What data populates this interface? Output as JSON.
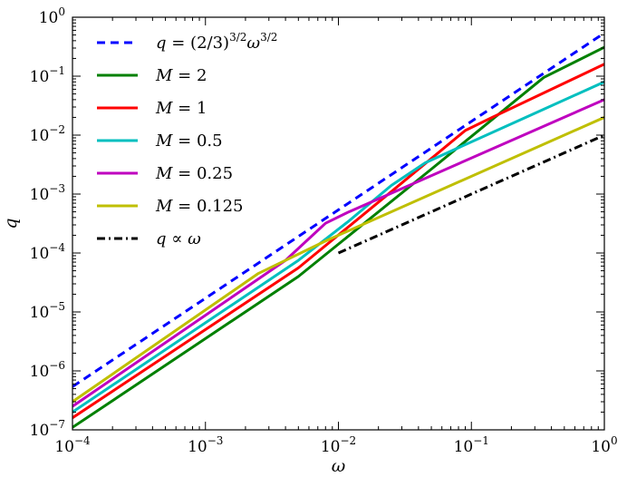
{
  "chart_data": {
    "type": "line",
    "xscale": "log",
    "yscale": "log",
    "xlim": [
      0.0001,
      1
    ],
    "ylim": [
      1e-07,
      1
    ],
    "xlabel": "ω",
    "ylabel": "q",
    "xticks": [
      {
        "value": 0.0001,
        "base": "10",
        "exp": "−4"
      },
      {
        "value": 0.001,
        "base": "10",
        "exp": "−3"
      },
      {
        "value": 0.01,
        "base": "10",
        "exp": "−2"
      },
      {
        "value": 0.1,
        "base": "10",
        "exp": "−1"
      },
      {
        "value": 1,
        "base": "10",
        "exp": "0"
      }
    ],
    "yticks": [
      {
        "value": 1e-07,
        "base": "10",
        "exp": "−7"
      },
      {
        "value": 1e-06,
        "base": "10",
        "exp": "−6"
      },
      {
        "value": 1e-05,
        "base": "10",
        "exp": "−5"
      },
      {
        "value": 0.0001,
        "base": "10",
        "exp": "−4"
      },
      {
        "value": 0.001,
        "base": "10",
        "exp": "−3"
      },
      {
        "value": 0.01,
        "base": "10",
        "exp": "−2"
      },
      {
        "value": 0.1,
        "base": "10",
        "exp": "−1"
      },
      {
        "value": 1,
        "base": "10",
        "exp": "0"
      }
    ],
    "legend_position": "top-left",
    "series": [
      {
        "name": "q = (2/3)^{3/2} ω^{3/2}",
        "legend": [
          "q",
          " = (2/3)",
          "3/2",
          "ω",
          "3/2"
        ],
        "color": "#0000ff",
        "dash": "dashed",
        "points": [
          [
            0.0001,
            5.4e-07
          ],
          [
            1,
            0.54
          ]
        ]
      },
      {
        "name": "M = 2",
        "legend": [
          "M",
          " = 2"
        ],
        "color": "#008000",
        "dash": "solid",
        "points": [
          [
            0.0001,
            1.1e-07
          ],
          [
            0.005,
            4e-05
          ],
          [
            0.05,
            0.00265
          ],
          [
            0.35,
            0.095
          ],
          [
            1,
            0.31
          ]
        ]
      },
      {
        "name": "M = 1",
        "legend": [
          "M",
          " = 1"
        ],
        "color": "#ff0000",
        "dash": "solid",
        "points": [
          [
            0.0001,
            1.6e-07
          ],
          [
            0.005,
            5.6e-05
          ],
          [
            0.025,
            0.0011
          ],
          [
            0.09,
            0.012
          ],
          [
            0.15,
            0.021
          ],
          [
            1,
            0.16
          ]
        ]
      },
      {
        "name": "M = 0.5",
        "legend": [
          "M",
          " = 0.5"
        ],
        "color": "#00bfbf",
        "dash": "solid",
        "points": [
          [
            0.0001,
            2e-07
          ],
          [
            0.005,
            7.5e-05
          ],
          [
            0.012,
            0.00035
          ],
          [
            0.025,
            0.0014
          ],
          [
            0.045,
            0.0034
          ],
          [
            1,
            0.08
          ]
        ]
      },
      {
        "name": "M = 0.25",
        "legend": [
          "M",
          " = 0.25"
        ],
        "color": "#bf00bf",
        "dash": "solid",
        "points": [
          [
            0.0001,
            2.5e-07
          ],
          [
            0.004,
            7.5e-05
          ],
          [
            0.008,
            0.00032
          ],
          [
            0.012,
            0.0005
          ],
          [
            1,
            0.04
          ]
        ]
      },
      {
        "name": "M = 0.125",
        "legend": [
          "M",
          " = 0.125"
        ],
        "color": "#bfbf00",
        "dash": "solid",
        "points": [
          [
            0.0001,
            3e-07
          ],
          [
            0.0025,
            4.5e-05
          ],
          [
            0.008,
            0.00016
          ],
          [
            1,
            0.02
          ]
        ]
      },
      {
        "name": "q ∝ ω",
        "legend": [
          "q",
          " ∝ ",
          "ω"
        ],
        "color": "#000000",
        "dash": "dashdot",
        "points": [
          [
            0.01,
            0.0001
          ],
          [
            1,
            0.01
          ]
        ]
      }
    ]
  }
}
